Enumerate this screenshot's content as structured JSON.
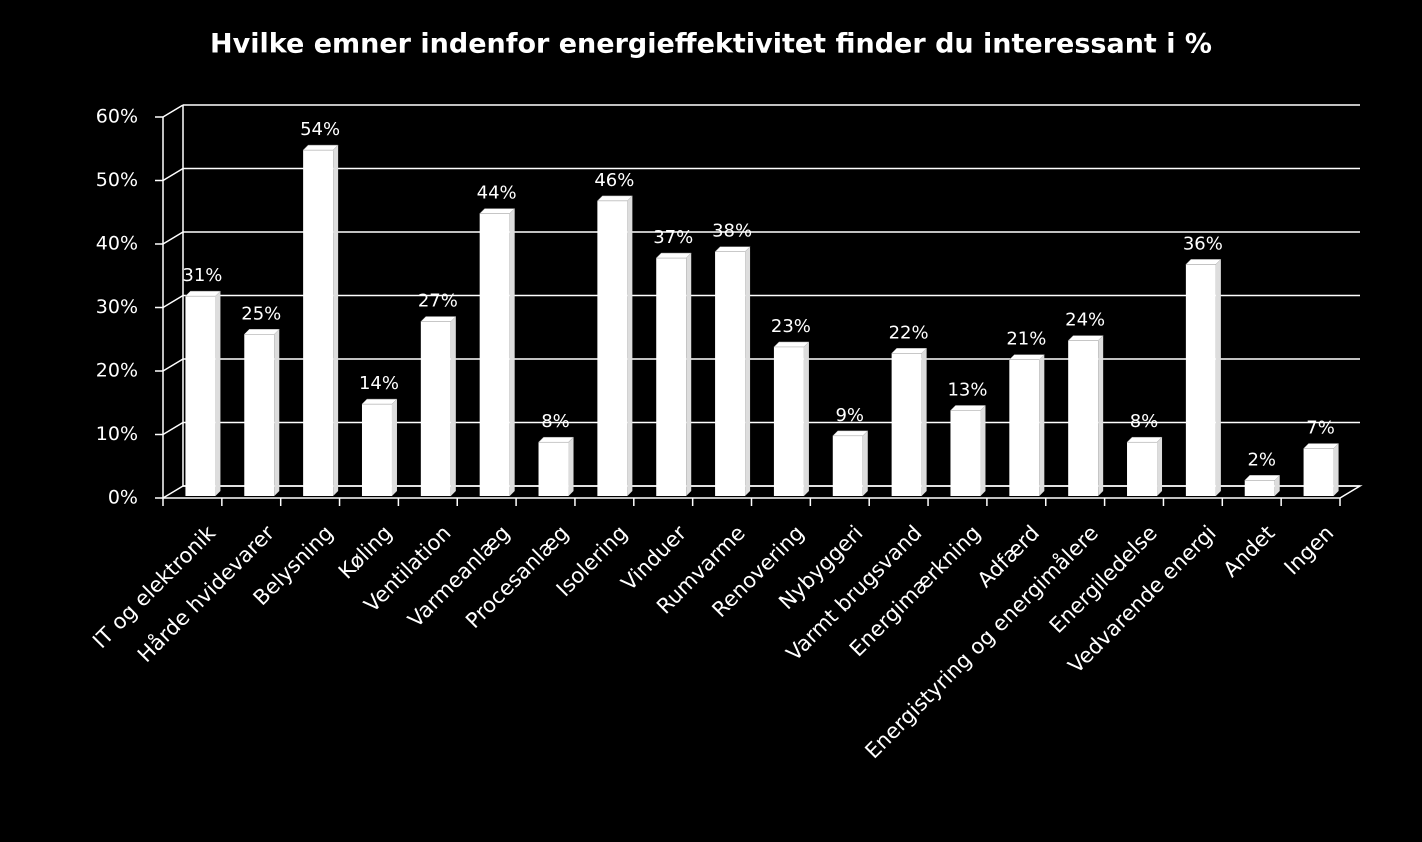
{
  "chart_data": {
    "type": "bar",
    "title": "Hvilke emner indenfor energieffektivitet finder du interessant i %",
    "categories": [
      "IT og elektronik",
      "Hårde hvidevarer",
      "Belysning",
      "Køling",
      "Ventilation",
      "Varmeanlæg",
      "Procesanlæg",
      "Isolering",
      "Vinduer",
      "Rumvarme",
      "Renovering",
      "Nybyggeri",
      "Varmt brugsvand",
      "Energimærkning",
      "Adfærd",
      "Energistyring og energimålere",
      "Energiledelse",
      "Vedvarende energi",
      "Andet",
      "Ingen"
    ],
    "values": [
      31,
      25,
      54,
      14,
      27,
      44,
      8,
      46,
      37,
      38,
      23,
      9,
      22,
      13,
      21,
      24,
      8,
      36,
      2,
      7
    ],
    "value_labels": [
      "31%",
      "25%",
      "54%",
      "14%",
      "27%",
      "44%",
      "8%",
      "46%",
      "37%",
      "38%",
      "23%",
      "9%",
      "22%",
      "13%",
      "21%",
      "24%",
      "8%",
      "36%",
      "2%",
      "7%"
    ],
    "color": "#ffffff",
    "ylim": [
      0,
      60
    ],
    "yticks": [
      {
        "value": 0,
        "label": "0%"
      },
      {
        "value": 10,
        "label": "10%"
      },
      {
        "value": 20,
        "label": "20%"
      },
      {
        "value": 30,
        "label": "30%"
      },
      {
        "value": 40,
        "label": "40%"
      },
      {
        "value": 50,
        "label": "50%"
      },
      {
        "value": 60,
        "label": "60%"
      }
    ],
    "grid": true
  }
}
